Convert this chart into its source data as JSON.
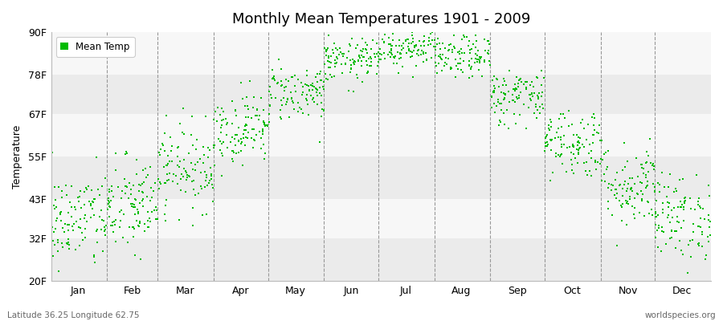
{
  "title": "Monthly Mean Temperatures 1901 - 2009",
  "ylabel": "Temperature",
  "subtitle_left": "Latitude 36.25 Longitude 62.75",
  "subtitle_right": "worldspecies.org",
  "legend_label": "Mean Temp",
  "ylim": [
    20,
    90
  ],
  "yticks": [
    20,
    32,
    43,
    55,
    67,
    78,
    90
  ],
  "ytick_labels": [
    "20F",
    "32F",
    "43F",
    "55F",
    "67F",
    "78F",
    "90F"
  ],
  "months": [
    "Jan",
    "Feb",
    "Mar",
    "Apr",
    "May",
    "Jun",
    "Jul",
    "Aug",
    "Sep",
    "Oct",
    "Nov",
    "Dec"
  ],
  "dot_color": "#00BB00",
  "bg_color": "#FFFFFF",
  "plot_bg_color": "#FFFFFF",
  "band_color_dark": "#EBEBEB",
  "band_color_light": "#F7F7F7",
  "monthly_means_F": [
    37,
    41,
    52,
    63,
    73,
    82,
    86,
    83,
    72,
    59,
    47,
    38
  ],
  "monthly_std_F": [
    7,
    7,
    6,
    5,
    4,
    3,
    3,
    3,
    4,
    5,
    6,
    6
  ],
  "n_years": 109,
  "seed": 42,
  "xlim_left": 0,
  "xlim_right": 365,
  "month_day_starts": [
    0,
    31,
    59,
    90,
    120,
    151,
    181,
    212,
    243,
    273,
    304,
    334
  ],
  "month_day_centers": [
    15,
    45,
    74,
    105,
    135,
    166,
    196,
    227,
    258,
    288,
    319,
    349
  ]
}
